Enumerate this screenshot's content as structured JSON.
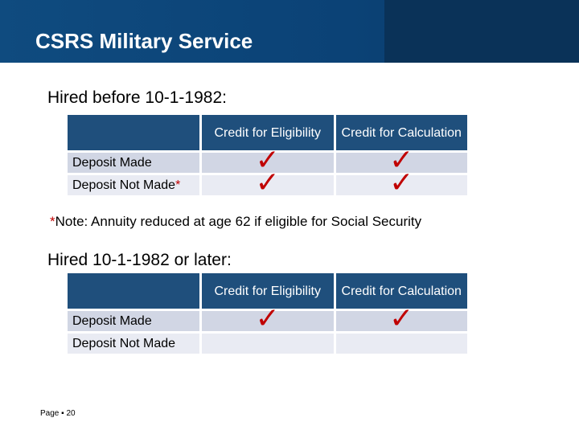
{
  "slide": {
    "title": "CSRS Military Service"
  },
  "sections": [
    {
      "heading": "Hired before 10-1-1982:",
      "columns": [
        "Credit for Eligibility",
        "Credit for Calculation"
      ],
      "rows": [
        {
          "label": "Deposit Made",
          "asterisk": "",
          "eligibility": "✓",
          "calculation": "✓"
        },
        {
          "label": "Deposit Not Made",
          "asterisk": "*",
          "eligibility": "✓",
          "calculation": "✓"
        }
      ]
    },
    {
      "heading": "Hired 10-1-1982 or later:",
      "columns": [
        "Credit for Eligibility",
        "Credit for Calculation"
      ],
      "rows": [
        {
          "label": "Deposit Made",
          "asterisk": "",
          "eligibility": "✓",
          "calculation": "✓"
        },
        {
          "label": "Deposit Not Made",
          "asterisk": "",
          "eligibility": "",
          "calculation": ""
        }
      ]
    }
  ],
  "note": {
    "marker": "*",
    "text": "Note:  Annuity reduced at age 62 if eligible for Social Security"
  },
  "footer": {
    "page_label": "Page ▪ 20"
  },
  "colors": {
    "header_blue": "#1f4f7c",
    "check_red": "#c00000",
    "row_dark": "#d1d6e4",
    "row_light": "#e9ebf3"
  }
}
